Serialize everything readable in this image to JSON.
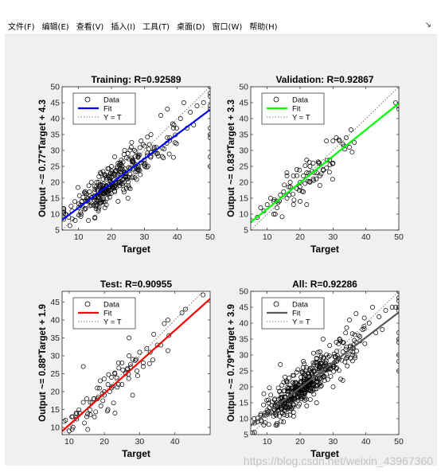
{
  "menu": {
    "items": [
      "文件(F)",
      "编辑(E)",
      "查看(V)",
      "插入(I)",
      "工具(T)",
      "桌面(D)",
      "窗口(W)",
      "帮助(H)"
    ],
    "arrow": "↘"
  },
  "watermark": "https://blog.csdn.net/weixin_43967360",
  "chart_data": [
    {
      "type": "scatter",
      "title": "Training: R=0.92589",
      "xlabel": "Target",
      "ylabel": "Output ~= 0.77*Target + 4.3",
      "xlim": [
        5,
        50
      ],
      "ylim": [
        5,
        50
      ],
      "xticks": [
        10,
        20,
        30,
        40,
        50
      ],
      "yticks": [
        5,
        10,
        15,
        20,
        25,
        30,
        35,
        40,
        45,
        50
      ],
      "fit": {
        "slope": 0.77,
        "intercept": 4.3,
        "color": "#0000ff"
      },
      "legend": {
        "position": "top-left",
        "entries": [
          "Data",
          "Fit",
          "Y = T"
        ]
      },
      "cloud": {
        "n": 300,
        "seed": 11
      },
      "points": [
        [
          50,
          50
        ],
        [
          50,
          48
        ],
        [
          50,
          47
        ],
        [
          50,
          44
        ],
        [
          50,
          37
        ],
        [
          50,
          35
        ],
        [
          50,
          34
        ],
        [
          50,
          28
        ],
        [
          50,
          25
        ],
        [
          50,
          43
        ],
        [
          48,
          45
        ],
        [
          46,
          44
        ],
        [
          44,
          42
        ],
        [
          45,
          38
        ],
        [
          42,
          45
        ],
        [
          41,
          40
        ],
        [
          43,
          37
        ],
        [
          39,
          38
        ],
        [
          37,
          43
        ],
        [
          35,
          41
        ],
        [
          37,
          34
        ],
        [
          33,
          31
        ],
        [
          32,
          35
        ],
        [
          34,
          29
        ],
        [
          30,
          27
        ],
        [
          29,
          33
        ],
        [
          28,
          24
        ],
        [
          27,
          30
        ],
        [
          26,
          31
        ],
        [
          25,
          29
        ],
        [
          24,
          30
        ],
        [
          23,
          27
        ],
        [
          22,
          26
        ],
        [
          21,
          28
        ],
        [
          20,
          25
        ],
        [
          21,
          17
        ],
        [
          22,
          14
        ],
        [
          25,
          15
        ],
        [
          19,
          22
        ],
        [
          18,
          12
        ],
        [
          16,
          11
        ],
        [
          15,
          9
        ],
        [
          13,
          8
        ],
        [
          10,
          12
        ],
        [
          8,
          11
        ],
        [
          7,
          9
        ],
        [
          6,
          10
        ],
        [
          9,
          8
        ],
        [
          11,
          14
        ]
      ]
    },
    {
      "type": "scatter",
      "title": "Validation: R=0.92867",
      "xlabel": "Target",
      "ylabel": "Output ~= 0.83*Target + 3.3",
      "xlim": [
        5,
        50
      ],
      "ylim": [
        5,
        50
      ],
      "xticks": [
        10,
        20,
        30,
        40,
        50
      ],
      "yticks": [
        5,
        10,
        15,
        20,
        25,
        30,
        35,
        40,
        45,
        50
      ],
      "fit": {
        "slope": 0.83,
        "intercept": 3.3,
        "color": "#00ff00"
      },
      "legend": {
        "position": "top-left",
        "entries": [
          "Data",
          "Fit",
          "Y = T"
        ]
      },
      "cloud": {
        "n": 45,
        "seed": 23
      },
      "points": [
        [
          5,
          8
        ],
        [
          7,
          9
        ],
        [
          9,
          11
        ],
        [
          10,
          13
        ],
        [
          12,
          14
        ],
        [
          13,
          12
        ],
        [
          14,
          16
        ],
        [
          15,
          17
        ],
        [
          16,
          22
        ],
        [
          17,
          20
        ],
        [
          18,
          22
        ],
        [
          19,
          18
        ],
        [
          20,
          20
        ],
        [
          21,
          22
        ],
        [
          22,
          27
        ],
        [
          23,
          25
        ],
        [
          24,
          26
        ],
        [
          24,
          21
        ],
        [
          25,
          23
        ],
        [
          26,
          22
        ],
        [
          28,
          33
        ],
        [
          29,
          27
        ],
        [
          30,
          33
        ],
        [
          31,
          34
        ],
        [
          32,
          33
        ],
        [
          33,
          32
        ],
        [
          34,
          34
        ],
        [
          35,
          31
        ],
        [
          30,
          26
        ],
        [
          27,
          24
        ],
        [
          22,
          13
        ],
        [
          20,
          14
        ],
        [
          18,
          13
        ],
        [
          16,
          15
        ],
        [
          21,
          17
        ],
        [
          23,
          20
        ],
        [
          26,
          19
        ],
        [
          49,
          45
        ],
        [
          50,
          44
        ],
        [
          50,
          43
        ],
        [
          12,
          10
        ],
        [
          8,
          12
        ],
        [
          11,
          15
        ],
        [
          19,
          24
        ],
        [
          22,
          23
        ]
      ]
    },
    {
      "type": "scatter",
      "title": "Test: R=0.90955",
      "xlabel": "Target",
      "ylabel": "Output ~= 0.88*Target + 1.9",
      "xlim": [
        8,
        50
      ],
      "ylim": [
        8,
        48
      ],
      "xticks": [
        10,
        20,
        30,
        40
      ],
      "yticks": [
        10,
        15,
        20,
        25,
        30,
        35,
        40,
        45
      ],
      "fit": {
        "slope": 0.88,
        "intercept": 1.9,
        "color": "#ff0000"
      },
      "legend": {
        "position": "top-left",
        "entries": [
          "Data",
          "Fit",
          "Y = T"
        ]
      },
      "cloud": {
        "n": 45,
        "seed": 37
      },
      "points": [
        [
          9,
          12
        ],
        [
          10,
          9
        ],
        [
          11,
          13
        ],
        [
          12,
          14
        ],
        [
          13,
          14
        ],
        [
          14,
          27
        ],
        [
          14,
          17
        ],
        [
          15,
          18
        ],
        [
          15,
          13
        ],
        [
          16,
          17
        ],
        [
          17,
          18
        ],
        [
          18,
          18
        ],
        [
          18,
          21
        ],
        [
          19,
          16
        ],
        [
          20,
          19
        ],
        [
          20,
          20
        ],
        [
          21,
          22
        ],
        [
          22,
          21
        ],
        [
          22,
          24
        ],
        [
          23,
          25
        ],
        [
          24,
          22
        ],
        [
          24,
          28
        ],
        [
          25,
          22
        ],
        [
          25,
          28
        ],
        [
          26,
          25
        ],
        [
          27,
          35
        ],
        [
          27,
          30
        ],
        [
          28,
          29
        ],
        [
          28,
          19
        ],
        [
          29,
          29
        ],
        [
          30,
          31
        ],
        [
          31,
          28
        ],
        [
          31,
          27
        ],
        [
          32,
          32
        ],
        [
          33,
          31
        ],
        [
          34,
          36
        ],
        [
          35,
          33
        ],
        [
          36,
          33
        ],
        [
          37,
          39
        ],
        [
          38,
          40
        ],
        [
          42,
          42
        ],
        [
          43,
          43
        ],
        [
          48,
          47
        ],
        [
          21,
          15
        ],
        [
          23,
          14
        ]
      ]
    },
    {
      "type": "scatter",
      "title": "All: R=0.92286",
      "xlabel": "Target",
      "ylabel": "Output ~= 0.79*Target + 3.9",
      "xlim": [
        5,
        50
      ],
      "ylim": [
        5,
        50
      ],
      "xticks": [
        10,
        20,
        30,
        40,
        50
      ],
      "yticks": [
        5,
        10,
        15,
        20,
        25,
        30,
        35,
        40,
        45,
        50
      ],
      "fit": {
        "slope": 0.79,
        "intercept": 3.9,
        "color": "#595959"
      },
      "legend": {
        "position": "top-left",
        "entries": [
          "Data",
          "Fit",
          "Y = T"
        ]
      },
      "cloud": {
        "n": 420,
        "seed": 53
      },
      "points": [
        [
          50,
          50
        ],
        [
          50,
          48
        ],
        [
          50,
          47
        ],
        [
          50,
          45
        ],
        [
          50,
          44
        ],
        [
          50,
          37
        ],
        [
          50,
          35
        ],
        [
          50,
          34
        ],
        [
          50,
          30
        ],
        [
          50,
          28
        ],
        [
          50,
          25
        ],
        [
          49,
          45
        ],
        [
          48,
          45
        ],
        [
          46,
          44
        ],
        [
          44,
          42
        ],
        [
          45,
          38
        ],
        [
          42,
          45
        ],
        [
          41,
          40
        ],
        [
          43,
          37
        ],
        [
          39,
          38
        ],
        [
          37,
          43
        ],
        [
          35,
          41
        ],
        [
          37,
          34
        ],
        [
          33,
          31
        ],
        [
          32,
          35
        ],
        [
          34,
          29
        ],
        [
          30,
          27
        ],
        [
          29,
          33
        ],
        [
          28,
          24
        ],
        [
          26,
          31
        ],
        [
          25,
          29
        ],
        [
          22,
          26
        ],
        [
          21,
          28
        ],
        [
          21,
          17
        ],
        [
          22,
          14
        ],
        [
          25,
          15
        ],
        [
          18,
          12
        ],
        [
          16,
          11
        ],
        [
          15,
          9
        ],
        [
          13,
          8
        ],
        [
          10,
          12
        ],
        [
          8,
          11
        ],
        [
          7,
          9
        ],
        [
          6,
          10
        ],
        [
          9,
          8
        ],
        [
          27,
          35
        ],
        [
          14,
          27
        ],
        [
          33,
          34
        ],
        [
          31,
          34
        ]
      ]
    }
  ]
}
